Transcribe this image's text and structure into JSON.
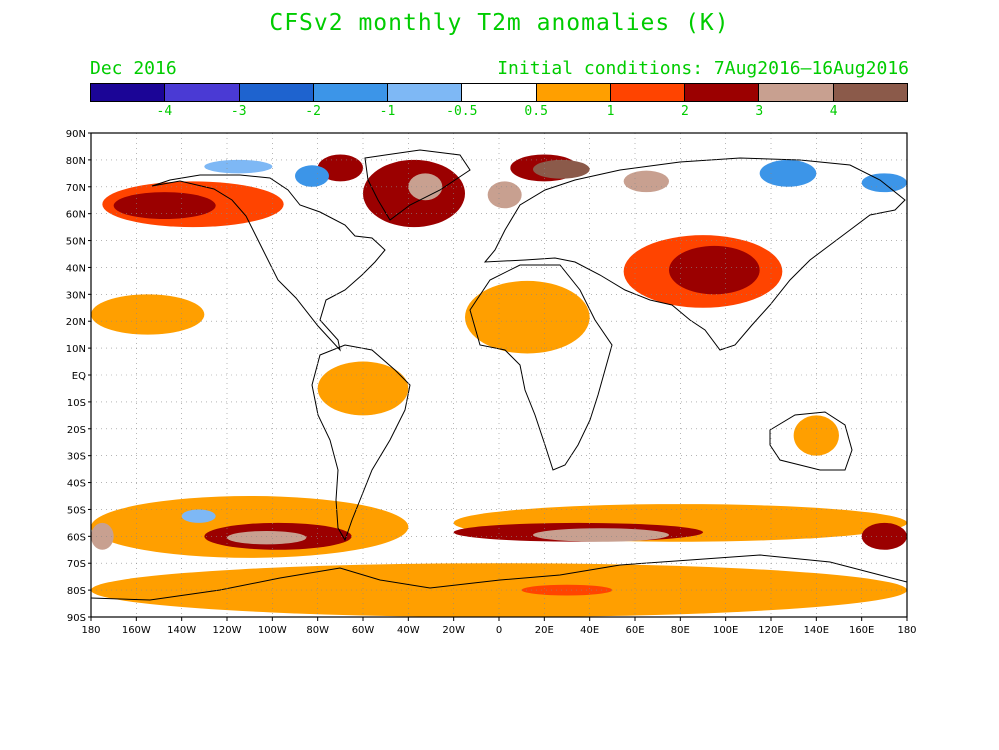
{
  "title": "CFSv2 monthly T2m anomalies (K)",
  "valid_month": "Dec 2016",
  "initial_conditions": "Initial conditions: 7Aug2016–16Aug2016",
  "colorbar": {
    "colors": [
      "#1b0596",
      "#4a3ad4",
      "#1e63cf",
      "#3c95e8",
      "#7eb8f5",
      "#ffffff",
      "#ff9f00",
      "#ff4400",
      "#9b0000",
      "#c8a090",
      "#8b5a4a"
    ],
    "labels": [
      "-4",
      "-3",
      "-2",
      "-1",
      "-0.5",
      "0.5",
      "1",
      "2",
      "3",
      "4"
    ]
  },
  "map": {
    "lat_labels": [
      "90N",
      "80N",
      "70N",
      "60N",
      "50N",
      "40N",
      "30N",
      "20N",
      "10N",
      "EQ",
      "10S",
      "20S",
      "30S",
      "40S",
      "50S",
      "60S",
      "70S",
      "80S",
      "90S"
    ],
    "lon_labels": [
      "180",
      "160W",
      "140W",
      "120W",
      "100W",
      "80W",
      "60W",
      "40W",
      "20W",
      "0",
      "20E",
      "40E",
      "60E",
      "80E",
      "100E",
      "120E",
      "140E",
      "160E",
      "180"
    ]
  },
  "chart_data": {
    "type": "heatmap",
    "variable": "T2m anomalies",
    "units": "K",
    "levels": [
      -4,
      -3,
      -2,
      -1,
      -0.5,
      0.5,
      1,
      2,
      3,
      4
    ],
    "xlim": [
      -180,
      180
    ],
    "ylim": [
      -90,
      90
    ],
    "regions": [
      {
        "lon": [
          -175,
          -95
        ],
        "lat": [
          55,
          72
        ],
        "value": 1
      },
      {
        "lon": [
          -170,
          -125
        ],
        "lat": [
          58,
          68
        ],
        "value": 2
      },
      {
        "lon": [
          -80,
          -60
        ],
        "lat": [
          72,
          82
        ],
        "value": 2
      },
      {
        "lon": [
          -60,
          -15
        ],
        "lat": [
          55,
          80
        ],
        "value": 2
      },
      {
        "lon": [
          -40,
          -25
        ],
        "lat": [
          65,
          75
        ],
        "value": 3
      },
      {
        "lon": [
          -5,
          10
        ],
        "lat": [
          62,
          72
        ],
        "value": 3
      },
      {
        "lon": [
          5,
          35
        ],
        "lat": [
          72,
          82
        ],
        "value": 2
      },
      {
        "lon": [
          15,
          40
        ],
        "lat": [
          73,
          80
        ],
        "value": 4
      },
      {
        "lon": [
          55,
          75
        ],
        "lat": [
          68,
          76
        ],
        "value": 3
      },
      {
        "lon": [
          -130,
          -100
        ],
        "lat": [
          75,
          80
        ],
        "value": -1
      },
      {
        "lon": [
          -90,
          -75
        ],
        "lat": [
          70,
          78
        ],
        "value": -2
      },
      {
        "lon": [
          115,
          140
        ],
        "lat": [
          70,
          80
        ],
        "value": -2
      },
      {
        "lon": [
          160,
          180
        ],
        "lat": [
          68,
          75
        ],
        "value": -2
      },
      {
        "lon": [
          55,
          125
        ],
        "lat": [
          25,
          52
        ],
        "value": 1
      },
      {
        "lon": [
          75,
          115
        ],
        "lat": [
          30,
          48
        ],
        "value": 2
      },
      {
        "lon": [
          -15,
          40
        ],
        "lat": [
          8,
          35
        ],
        "value": 0.5
      },
      {
        "lon": [
          -180,
          -130
        ],
        "lat": [
          15,
          30
        ],
        "value": 0.5
      },
      {
        "lon": [
          -150,
          -90
        ],
        "lat": [
          -3,
          1
        ],
        "value": -0.5
      },
      {
        "lon": [
          -80,
          -40
        ],
        "lat": [
          -15,
          5
        ],
        "value": 0.5
      },
      {
        "lon": [
          -60,
          -45
        ],
        "lat": [
          -25,
          -15
        ],
        "value": -0.5
      },
      {
        "lon": [
          -180,
          -40
        ],
        "lat": [
          -68,
          -45
        ],
        "value": 0.5
      },
      {
        "lon": [
          -130,
          -65
        ],
        "lat": [
          -65,
          -55
        ],
        "value": 2
      },
      {
        "lon": [
          -120,
          -85
        ],
        "lat": [
          -63,
          -58
        ],
        "value": 3
      },
      {
        "lon": [
          -20,
          180
        ],
        "lat": [
          -62,
          -48
        ],
        "value": 0.5
      },
      {
        "lon": [
          -20,
          90
        ],
        "lat": [
          -62,
          -55
        ],
        "value": 2
      },
      {
        "lon": [
          15,
          75
        ],
        "lat": [
          -62,
          -57
        ],
        "value": 3
      },
      {
        "lon": [
          -180,
          -170
        ],
        "lat": [
          -65,
          -55
        ],
        "value": 3
      },
      {
        "lon": [
          160,
          180
        ],
        "lat": [
          -65,
          -55
        ],
        "value": 2
      },
      {
        "lon": [
          -180,
          180
        ],
        "lat": [
          -90,
          -70
        ],
        "value": 0.5
      },
      {
        "lon": [
          10,
          50
        ],
        "lat": [
          -82,
          -78
        ],
        "value": 1
      },
      {
        "lon": [
          -140,
          -125
        ],
        "lat": [
          -55,
          -50
        ],
        "value": -1
      },
      {
        "lon": [
          130,
          150
        ],
        "lat": [
          -30,
          -15
        ],
        "value": 0.5
      }
    ]
  }
}
